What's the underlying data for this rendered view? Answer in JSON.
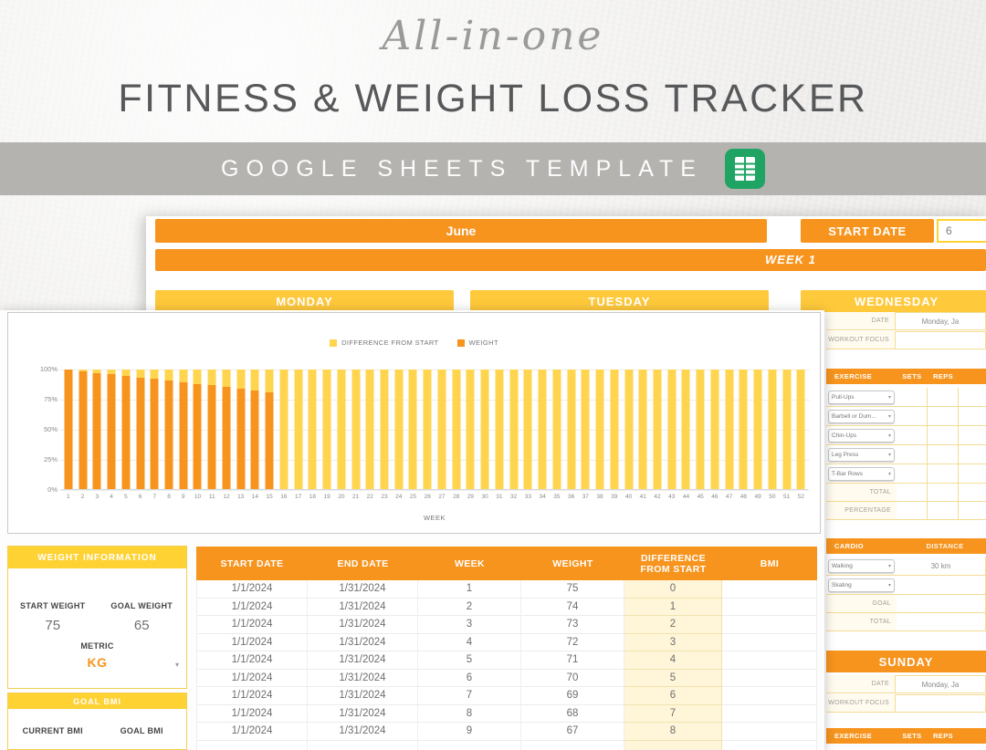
{
  "hero": {
    "script_title": "All-in-one",
    "main_title": "FITNESS & WEIGHT LOSS TRACKER"
  },
  "banner": {
    "label": "GOOGLE SHEETS TEMPLATE",
    "icon": "google-sheets-icon",
    "icon_color": "#1FA463"
  },
  "sheet": {
    "month_label": "June",
    "start_date_label": "START DATE",
    "start_date_value": "6",
    "week_banner": "WEEK 1",
    "day_headers": [
      "MONDAY",
      "TUESDAY",
      "WEDNESDAY"
    ]
  },
  "wednesday_panel": {
    "date_label": "DATE",
    "date_value": "Monday, Ja",
    "focus_label": "WORKOUT FOCUS",
    "focus_value": "",
    "table_header": [
      "EXERCISE",
      "SETS",
      "REPS"
    ],
    "exercises": [
      "Pull-Ups",
      "Barbell or Dum...",
      "Chin-Ups",
      "Leg Press",
      "T-Bar Rows"
    ],
    "total_label": "TOTAL",
    "percentage_label": "PERCENTAGE",
    "cardio_header": [
      "CARDIO",
      "DISTANCE"
    ],
    "cardio_rows": [
      {
        "activity": "Walking",
        "distance": "30 km"
      },
      {
        "activity": "Skating",
        "distance": ""
      }
    ],
    "goal_label": "GOAL",
    "cardio_total_label": "TOTAL"
  },
  "sunday_panel": {
    "header": "SUNDAY",
    "date_label": "DATE",
    "date_value": "Monday, Ja",
    "focus_label": "WORKOUT FOCUS",
    "focus_value": "",
    "table_header": [
      "EXERCISE",
      "SETS",
      "REPS"
    ]
  },
  "chart_data": {
    "type": "bar",
    "stacked_percent": true,
    "title": "",
    "xlabel": "WEEK",
    "ylim": [
      0,
      100
    ],
    "y_ticks": [
      "100%",
      "75%",
      "50%",
      "25%",
      "0%"
    ],
    "legend_position": "top",
    "grid": true,
    "x": [
      1,
      2,
      3,
      4,
      5,
      6,
      7,
      8,
      9,
      10,
      11,
      12,
      13,
      14,
      15,
      16,
      17,
      18,
      19,
      20,
      21,
      22,
      23,
      24,
      25,
      26,
      27,
      28,
      29,
      30,
      31,
      32,
      33,
      34,
      35,
      36,
      37,
      38,
      39,
      40,
      41,
      42,
      43,
      44,
      45,
      46,
      47,
      48,
      49,
      50,
      51,
      52
    ],
    "legend": [
      {
        "label": "DIFFERENCE FROM START",
        "color": "#FFD44E"
      },
      {
        "label": "WEIGHT",
        "color": "#F7941E"
      }
    ],
    "series": [
      {
        "name": "WEIGHT",
        "color": "#F7941E",
        "values": [
          100,
          98.7,
          97.3,
          96,
          94.7,
          93.3,
          92,
          90.7,
          89.3,
          88,
          86.7,
          85.3,
          84,
          82.7,
          81.3,
          0,
          0,
          0,
          0,
          0,
          0,
          0,
          0,
          0,
          0,
          0,
          0,
          0,
          0,
          0,
          0,
          0,
          0,
          0,
          0,
          0,
          0,
          0,
          0,
          0,
          0,
          0,
          0,
          0,
          0,
          0,
          0,
          0,
          0,
          0,
          0,
          0
        ]
      },
      {
        "name": "DIFFERENCE FROM START",
        "color": "#FFD44E",
        "values": [
          0,
          1.3,
          2.7,
          4,
          5.3,
          6.7,
          8,
          9.3,
          10.7,
          12,
          13.3,
          14.7,
          16,
          17.3,
          18.7,
          100,
          100,
          100,
          100,
          100,
          100,
          100,
          100,
          100,
          100,
          100,
          100,
          100,
          100,
          100,
          100,
          100,
          100,
          100,
          100,
          100,
          100,
          100,
          100,
          100,
          100,
          100,
          100,
          100,
          100,
          100,
          100,
          100,
          100,
          100,
          100,
          100
        ]
      }
    ]
  },
  "weight_info": {
    "header": "WEIGHT INFORMATION",
    "start_label": "START WEIGHT",
    "goal_label": "GOAL WEIGHT",
    "start_value": "75",
    "goal_value": "65",
    "metric_label": "METRIC",
    "metric_value": "KG"
  },
  "goal_bmi": {
    "header": "GOAL BMI",
    "current_label": "CURRENT BMI",
    "goal_label": "GOAL BMI"
  },
  "weekly_table": {
    "headers": [
      "START DATE",
      "END DATE",
      "WEEK",
      "WEIGHT",
      "DIFFERENCE FROM START",
      "BMI"
    ],
    "rows": [
      [
        "1/1/2024",
        "1/31/2024",
        "1",
        "75",
        "0",
        ""
      ],
      [
        "1/1/2024",
        "1/31/2024",
        "2",
        "74",
        "1",
        ""
      ],
      [
        "1/1/2024",
        "1/31/2024",
        "3",
        "73",
        "2",
        ""
      ],
      [
        "1/1/2024",
        "1/31/2024",
        "4",
        "72",
        "3",
        ""
      ],
      [
        "1/1/2024",
        "1/31/2024",
        "5",
        "71",
        "4",
        ""
      ],
      [
        "1/1/2024",
        "1/31/2024",
        "6",
        "70",
        "5",
        ""
      ],
      [
        "1/1/2024",
        "1/31/2024",
        "7",
        "69",
        "6",
        ""
      ],
      [
        "1/1/2024",
        "1/31/2024",
        "8",
        "68",
        "7",
        ""
      ],
      [
        "1/1/2024",
        "1/31/2024",
        "9",
        "67",
        "8",
        ""
      ]
    ]
  }
}
